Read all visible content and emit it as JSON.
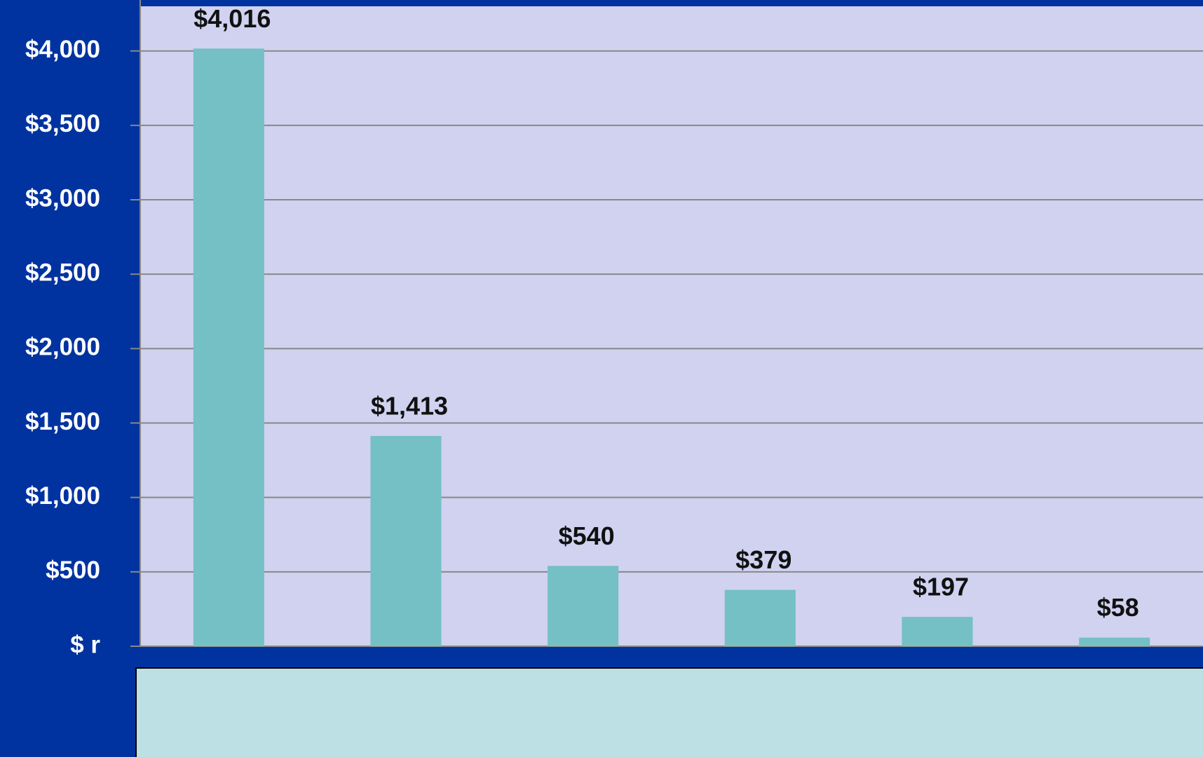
{
  "chart_data": {
    "type": "bar",
    "categories": [
      null,
      null,
      null,
      null,
      null,
      null
    ],
    "values": [
      4016,
      1413,
      540,
      379,
      197,
      58
    ],
    "value_labels": [
      "$4,016",
      "$1,413",
      "$540",
      "$379",
      "$197",
      "$58"
    ],
    "color": "#74c0c4",
    "ylim": [
      0,
      4300
    ],
    "yticks": [
      {
        "value": 0,
        "label": "$ r"
      },
      {
        "value": 500,
        "label": "$500"
      },
      {
        "value": 1000,
        "label": "$1,000"
      },
      {
        "value": 1500,
        "label": "$1,500"
      },
      {
        "value": 2000,
        "label": "$2,000"
      },
      {
        "value": 2500,
        "label": "$2,500"
      },
      {
        "value": 3000,
        "label": "$3,000"
      },
      {
        "value": 3500,
        "label": "$3,500"
      },
      {
        "value": 4000,
        "label": "$4,000"
      }
    ],
    "grid": true
  }
}
